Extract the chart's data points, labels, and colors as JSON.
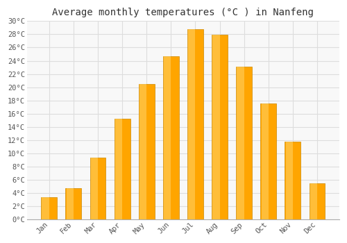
{
  "title": "Average monthly temperatures (°C ) in Nanfeng",
  "months": [
    "Jan",
    "Feb",
    "Mar",
    "Apr",
    "May",
    "Jun",
    "Jul",
    "Aug",
    "Sep",
    "Oct",
    "Nov",
    "Dec"
  ],
  "values": [
    3.3,
    4.7,
    9.3,
    15.2,
    20.5,
    24.7,
    28.8,
    27.9,
    23.1,
    17.5,
    11.8,
    5.4
  ],
  "bar_color_main": "#FFA500",
  "bar_color_light": "#FFD060",
  "bar_edge_color": "#CC8800",
  "ylim": [
    0,
    30
  ],
  "ytick_step": 2,
  "background_color": "#FFFFFF",
  "plot_bg_color": "#F8F8F8",
  "grid_color": "#DDDDDD",
  "title_fontsize": 10,
  "tick_fontsize": 7.5,
  "font_family": "monospace"
}
